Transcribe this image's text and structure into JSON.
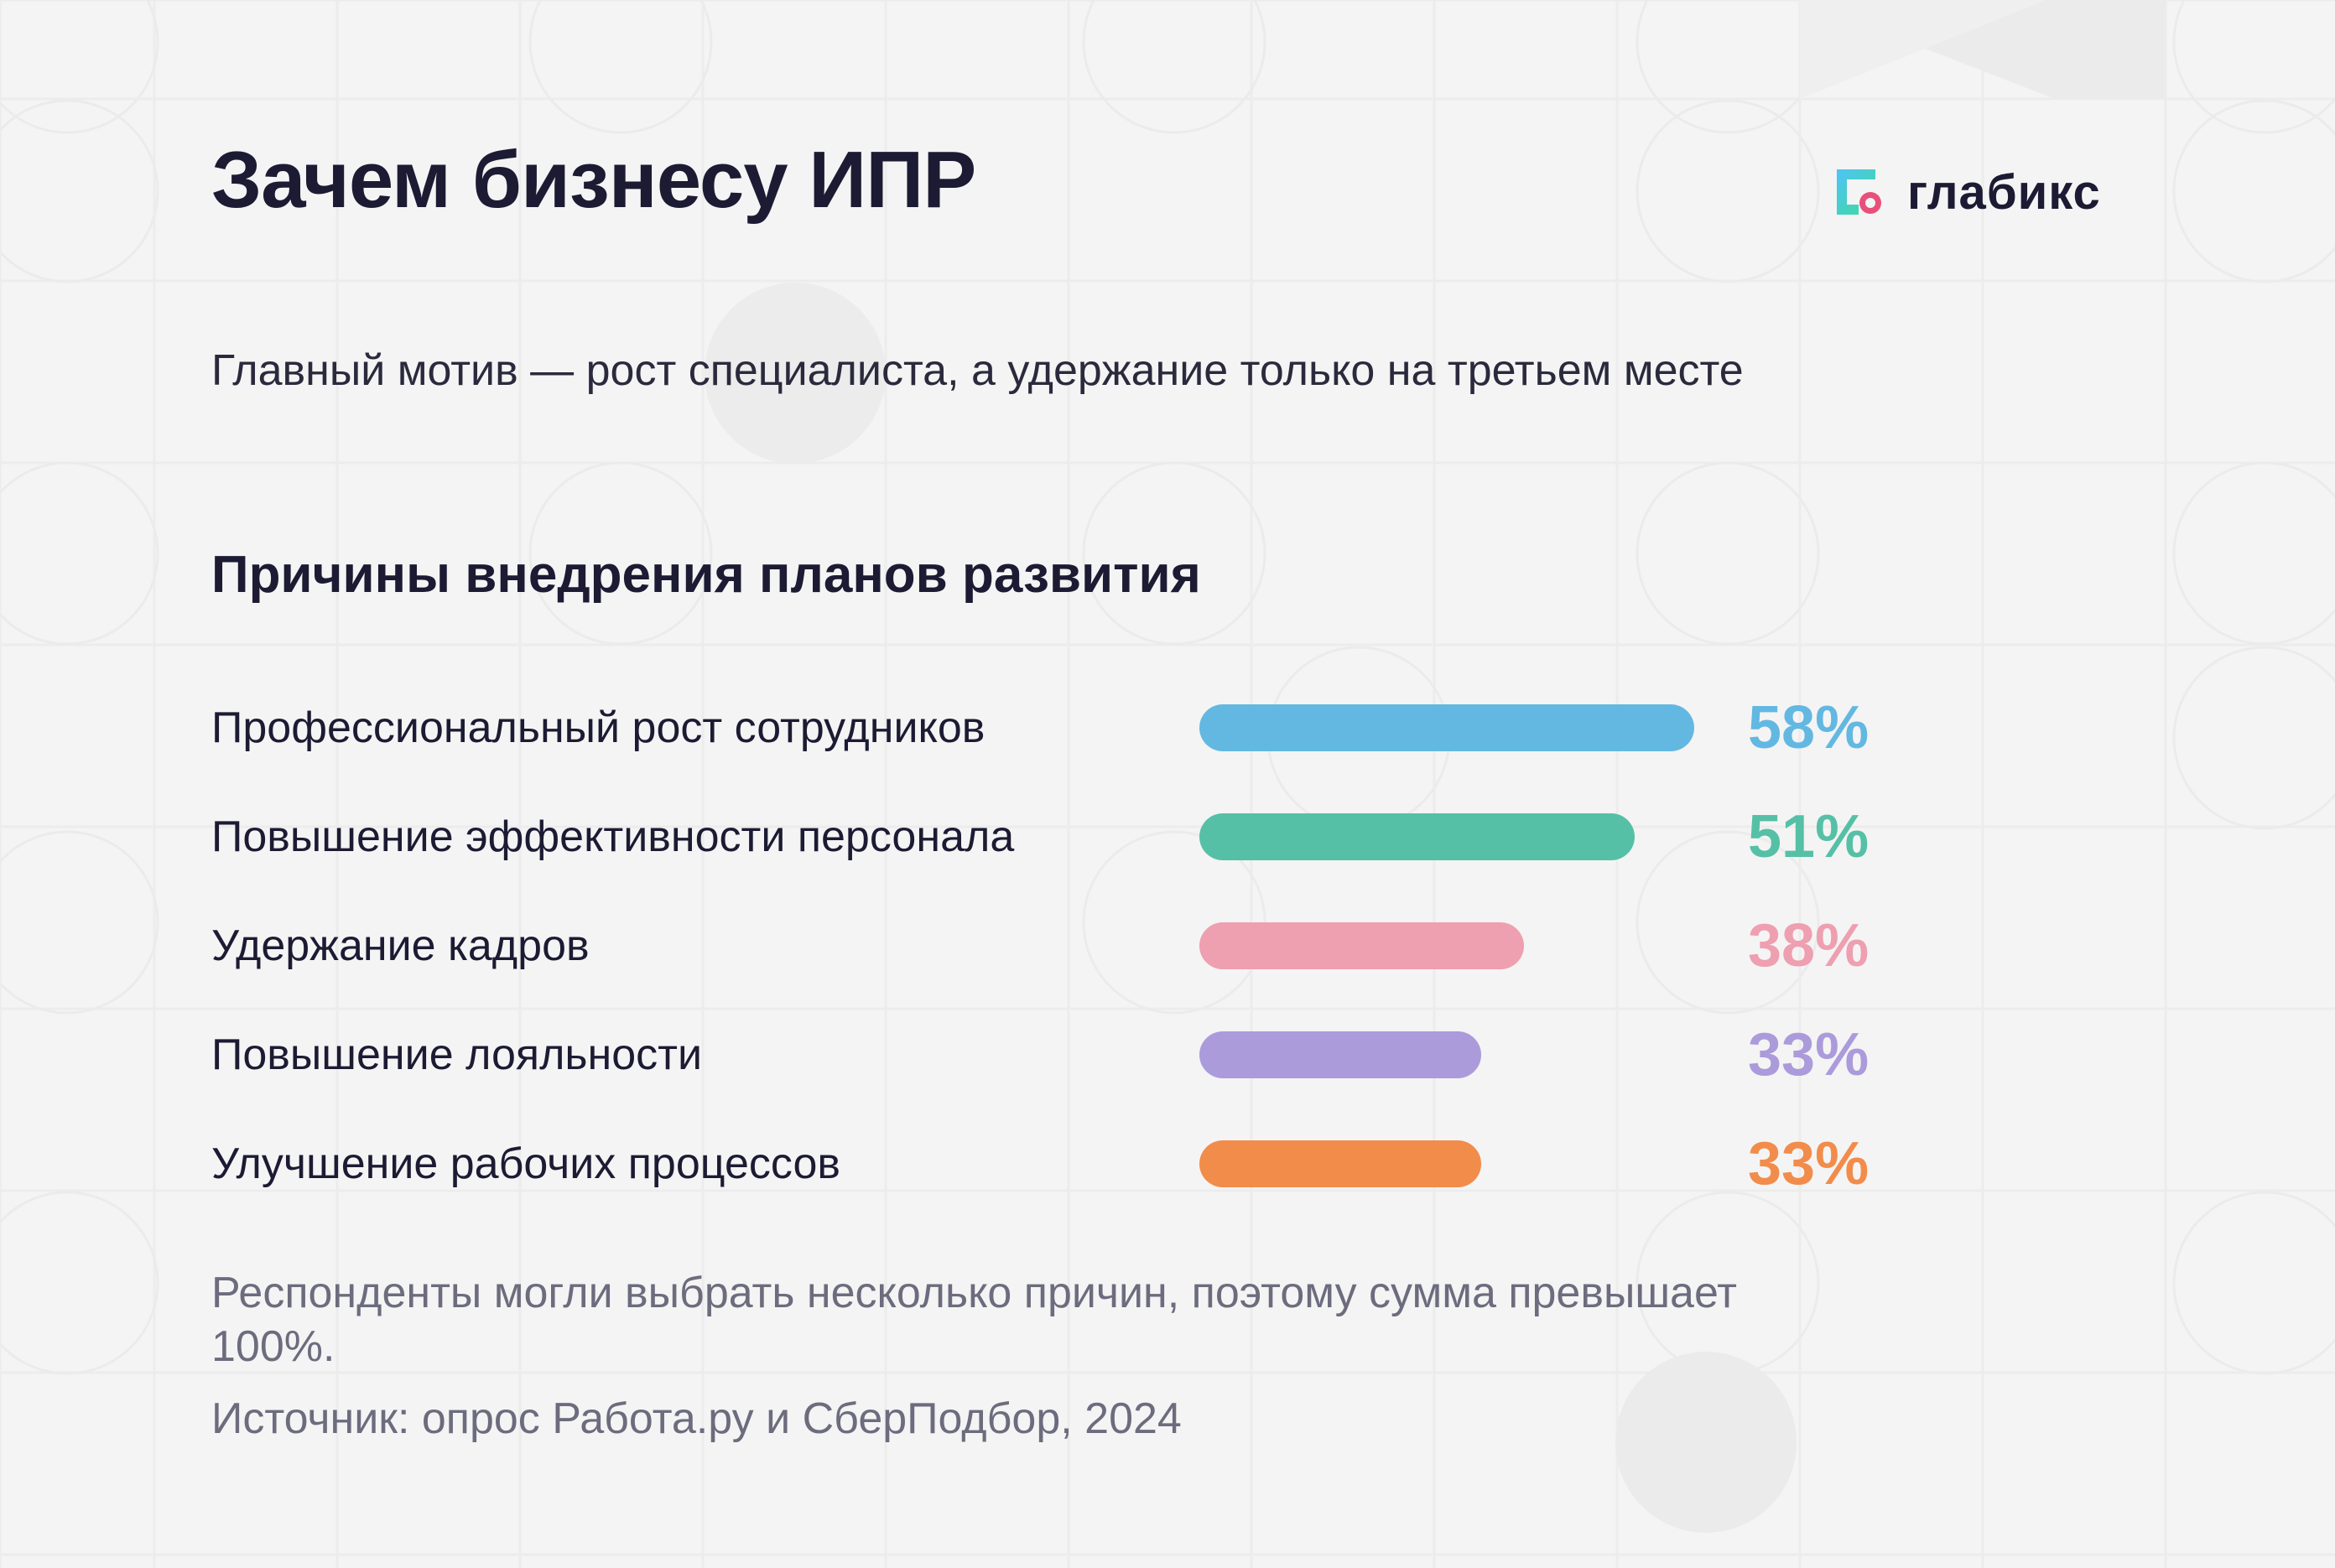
{
  "title": "Зачем бизнесу ИПР",
  "logo": {
    "text": "глабикс",
    "icon": "glabix-logo-icon"
  },
  "subtitle": "Главный мотив — рост специалиста, а удержание только на третьем месте",
  "colors": {
    "background": "#f4f4f4",
    "text": "#1c1b33",
    "muted": "#6c6c7e"
  },
  "chart_data": {
    "type": "bar",
    "orientation": "horizontal",
    "title": "Причины внедрения планов развития",
    "categories": [
      "Профессиональный рост сотрудников",
      "Повышение эффективности персонала",
      "Удержание кадров",
      "Повышение лояльности",
      "Улучшение рабочих процессов"
    ],
    "values": [
      58,
      51,
      38,
      33,
      33
    ],
    "value_labels": [
      "58%",
      "51%",
      "38%",
      "33%",
      "33%"
    ],
    "colors": [
      "#63b8e2",
      "#56c0a6",
      "#ee9fb0",
      "#ab9bdb",
      "#f28c4b"
    ],
    "unit": "%",
    "grid": false,
    "legend": "none"
  },
  "footnote": "Респонденты могли выбрать несколько причин, поэтому сумма превышает 100%.",
  "source": "Источник: опрос Работа.ру и СберПодбор, 2024"
}
